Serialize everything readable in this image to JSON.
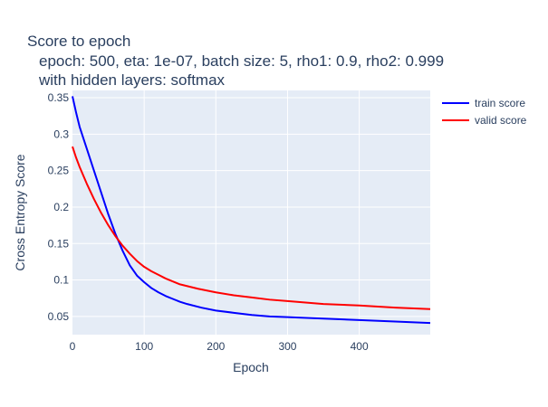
{
  "chart_data": {
    "type": "line",
    "title_lines": [
      "Score to epoch",
      "epoch: 500, eta: 1e-07, batch size: 5, rho1: 0.9, rho2: 0.999",
      "with hidden layers: softmax"
    ],
    "xlabel": "Epoch",
    "ylabel": "Cross Entropy Score",
    "xlim": [
      0,
      499
    ],
    "ylim": [
      0.025,
      0.36
    ],
    "xticks": [
      0,
      100,
      200,
      300,
      400
    ],
    "xtick_labels": [
      "0",
      "100",
      "200",
      "300",
      "400"
    ],
    "yticks": [
      0.05,
      0.1,
      0.15,
      0.2,
      0.25,
      0.3,
      0.35
    ],
    "ytick_labels": [
      "0.05",
      "0.1",
      "0.15",
      "0.2",
      "0.25",
      "0.3",
      "0.35"
    ],
    "grid": true,
    "legend_position": "top-right",
    "plot_background": "#e5ecf6",
    "series": [
      {
        "name": "train score",
        "color": "#0000ff",
        "x": [
          0,
          5,
          10,
          20,
          30,
          40,
          50,
          60,
          70,
          80,
          90,
          100,
          110,
          120,
          130,
          140,
          150,
          160,
          180,
          200,
          225,
          250,
          275,
          300,
          350,
          400,
          450,
          499
        ],
        "y": [
          0.352,
          0.33,
          0.31,
          0.28,
          0.25,
          0.22,
          0.19,
          0.163,
          0.14,
          0.12,
          0.106,
          0.097,
          0.089,
          0.083,
          0.078,
          0.074,
          0.07,
          0.067,
          0.062,
          0.058,
          0.055,
          0.052,
          0.05,
          0.049,
          0.047,
          0.045,
          0.043,
          0.041
        ]
      },
      {
        "name": "valid score",
        "color": "#ff0000",
        "x": [
          0,
          5,
          10,
          20,
          30,
          40,
          50,
          60,
          70,
          80,
          90,
          100,
          110,
          120,
          130,
          140,
          150,
          175,
          200,
          225,
          250,
          275,
          300,
          350,
          400,
          450,
          499
        ],
        "y": [
          0.283,
          0.268,
          0.255,
          0.232,
          0.211,
          0.192,
          0.175,
          0.16,
          0.147,
          0.136,
          0.126,
          0.118,
          0.112,
          0.107,
          0.102,
          0.098,
          0.094,
          0.088,
          0.083,
          0.079,
          0.076,
          0.073,
          0.071,
          0.067,
          0.065,
          0.062,
          0.06
        ]
      }
    ]
  }
}
